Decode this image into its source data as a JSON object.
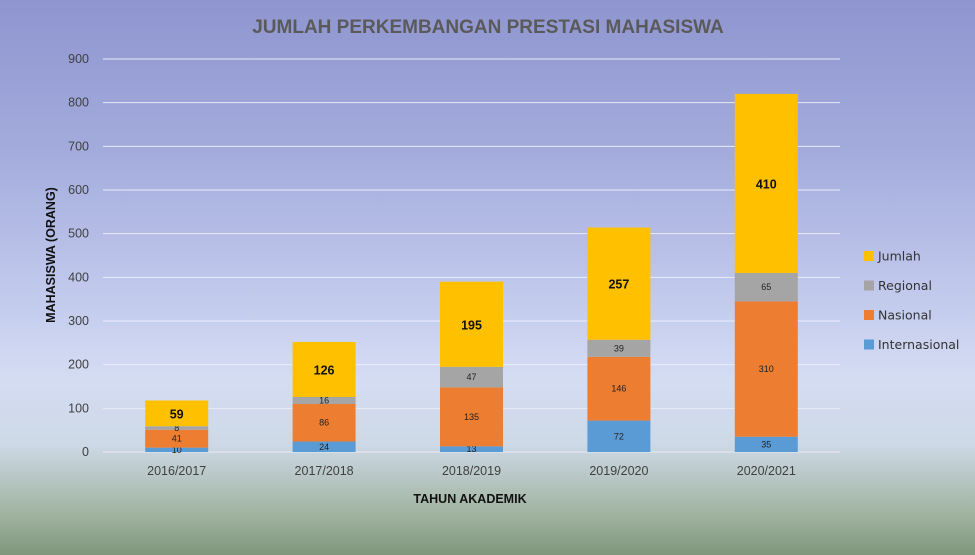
{
  "chart_data": {
    "type": "bar",
    "stacked": true,
    "title": "JUMLAH PERKEMBANGAN PRESTASI MAHASISWA",
    "xlabel": "TAHUN  AKADEMIK",
    "ylabel": "MAHASISWA  (ORANG)",
    "ylim": [
      0,
      900
    ],
    "yticks": [
      "0",
      "100",
      "200",
      "300",
      "400",
      "500",
      "600",
      "700",
      "800",
      "900"
    ],
    "grid": true,
    "legend_position": "right",
    "categories": [
      "2016/2017",
      "2017/2018",
      "2018/2019",
      "2019/2020",
      "2020/2021"
    ],
    "series": [
      {
        "name": "Internasional",
        "color": "#5b9bd5",
        "values": [
          10,
          24,
          13,
          72,
          35
        ]
      },
      {
        "name": "Nasional",
        "color": "#ed7d31",
        "values": [
          41,
          86,
          135,
          146,
          310
        ]
      },
      {
        "name": "Regional",
        "color": "#a5a5a5",
        "values": [
          8,
          16,
          47,
          39,
          65
        ]
      },
      {
        "name": "Jumlah",
        "color": "#ffc000",
        "values": [
          59,
          126,
          195,
          257,
          410
        ]
      }
    ],
    "legend_order": [
      "Jumlah",
      "Regional",
      "Nasional",
      "Internasional"
    ]
  }
}
